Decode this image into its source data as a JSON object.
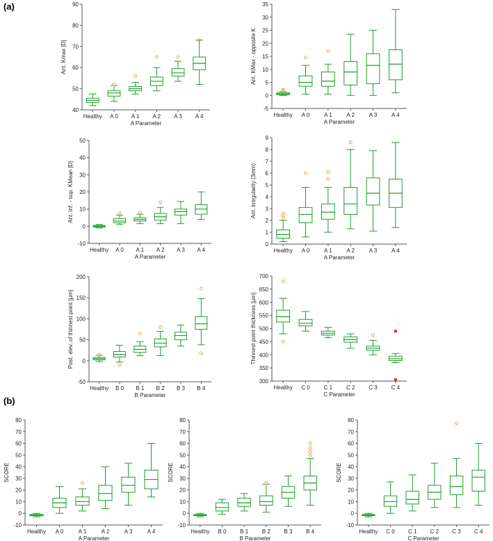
{
  "panel_labels": [
    "(a)",
    "(b)"
  ],
  "colors": {
    "box": "#1a9e2a",
    "outlier": "#f5a05a",
    "extreme": "#e8202a",
    "axis": "#555555",
    "text": "#222222"
  },
  "chart_data": [
    {
      "id": "kmax",
      "type": "box",
      "ylabel": "Ant. Kmax [D]",
      "xlabel": "A Parameter",
      "ylim": [
        40,
        90
      ],
      "yticks": [
        40,
        50,
        60,
        70,
        80,
        90
      ],
      "categories": [
        "Healthy",
        "A 0",
        "A 1",
        "A 2",
        "A 3",
        "A 4"
      ],
      "boxes": [
        {
          "wl": 42,
          "q1": 43.5,
          "med": 44.5,
          "q3": 45.5,
          "wh": 47.5,
          "outliers": []
        },
        {
          "wl": 44,
          "q1": 46.5,
          "med": 48,
          "q3": 49,
          "wh": 51.5,
          "outliers": [
            52
          ]
        },
        {
          "wl": 47.5,
          "q1": 49,
          "med": 50,
          "q3": 51,
          "wh": 53,
          "outliers": [
            56
          ]
        },
        {
          "wl": 49,
          "q1": 51.5,
          "med": 53.5,
          "q3": 55.5,
          "wh": 60,
          "outliers": [
            65
          ]
        },
        {
          "wl": 53.5,
          "q1": 56,
          "med": 57.5,
          "q3": 59.5,
          "wh": 63,
          "outliers": [
            65
          ]
        },
        {
          "wl": 52,
          "q1": 59,
          "med": 62,
          "q3": 65,
          "wh": 73,
          "outliers": [
            73
          ]
        }
      ]
    },
    {
      "id": "kmax_opp",
      "type": "box",
      "ylabel": "Ant. KMax - opposite K",
      "xlabel": "A Parameter",
      "ylim": [
        -5,
        35
      ],
      "yticks": [
        -5,
        0,
        5,
        10,
        15,
        20,
        25,
        30,
        35
      ],
      "categories": [
        "Healthy",
        "A 0",
        "A 1",
        "A 2",
        "A 3",
        "A 4"
      ],
      "boxes": [
        {
          "wl": 0,
          "q1": 0.3,
          "med": 0.6,
          "q3": 1,
          "wh": 1.5,
          "outliers": [
            1.8,
            2.0,
            2.2
          ]
        },
        {
          "wl": 0.5,
          "q1": 3.5,
          "med": 5,
          "q3": 7.5,
          "wh": 11.5,
          "outliers": [
            14.5
          ]
        },
        {
          "wl": 0.5,
          "q1": 3.5,
          "med": 5.5,
          "q3": 9,
          "wh": 12,
          "outliers": [
            17
          ]
        },
        {
          "wl": 0,
          "q1": 4,
          "med": 9,
          "q3": 13,
          "wh": 23.5,
          "outliers": []
        },
        {
          "wl": 0,
          "q1": 4.5,
          "med": 11.5,
          "q3": 16,
          "wh": 25,
          "outliers": []
        },
        {
          "wl": 1,
          "q1": 6,
          "med": 12,
          "q3": 17.5,
          "wh": 33,
          "outliers": []
        }
      ]
    },
    {
      "id": "infsup",
      "type": "box",
      "ylabel": "Ant. inf. - sup. KMean [D]",
      "xlabel": "A Parameter",
      "ylim": [
        -10,
        50
      ],
      "yticks": [
        -10,
        0,
        10,
        20,
        30,
        40,
        50
      ],
      "categories": [
        "Healthy",
        "A 0",
        "A 1",
        "A 2",
        "A 3",
        "A 4"
      ],
      "boxes": [
        {
          "wl": -1,
          "q1": -0.5,
          "med": 0,
          "q3": 0.5,
          "wh": 1,
          "outliers": []
        },
        {
          "wl": 1,
          "q1": 2,
          "med": 3,
          "q3": 4.5,
          "wh": 6.5,
          "outliers": [
            7.5
          ]
        },
        {
          "wl": 1.5,
          "q1": 3,
          "med": 4,
          "q3": 5,
          "wh": 7,
          "outliers": [
            8
          ]
        },
        {
          "wl": 1.5,
          "q1": 3.5,
          "med": 5.5,
          "q3": 7.5,
          "wh": 11,
          "outliers": [
            14
          ]
        },
        {
          "wl": 1.5,
          "q1": 6.5,
          "med": 8.5,
          "q3": 10,
          "wh": 14.5,
          "outliers": []
        },
        {
          "wl": 4,
          "q1": 7,
          "med": 10,
          "q3": 12.5,
          "wh": 20,
          "outliers": []
        }
      ]
    },
    {
      "id": "irreg",
      "type": "box",
      "ylabel": "Ant. irregularity (3mm)",
      "xlabel": "A Parameter",
      "ylim": [
        0,
        9
      ],
      "yticks": [
        0,
        1,
        2,
        3,
        4,
        5,
        6,
        7,
        8,
        9
      ],
      "categories": [
        "Healthy",
        "A 0",
        "A 1",
        "A 2",
        "A 3",
        "A 4"
      ],
      "boxes": [
        {
          "wl": 0.2,
          "q1": 0.5,
          "med": 0.8,
          "q3": 1.2,
          "wh": 2,
          "outliers": [
            2.2,
            2.4,
            2.6
          ]
        },
        {
          "wl": 0.6,
          "q1": 1.8,
          "med": 2.5,
          "q3": 3.1,
          "wh": 4.8,
          "outliers": [
            6.0
          ]
        },
        {
          "wl": 1,
          "q1": 2.1,
          "med": 2.7,
          "q3": 3.4,
          "wh": 4.8,
          "outliers": [
            5.5,
            6.1
          ]
        },
        {
          "wl": 1.3,
          "q1": 2.5,
          "med": 3.4,
          "q3": 4.8,
          "wh": 8,
          "outliers": [
            8.6
          ]
        },
        {
          "wl": 1.1,
          "q1": 3.3,
          "med": 4.3,
          "q3": 5.6,
          "wh": 7.9,
          "outliers": []
        },
        {
          "wl": 1.4,
          "q1": 3.1,
          "med": 4.3,
          "q3": 5.5,
          "wh": 8.6,
          "outliers": []
        }
      ]
    },
    {
      "id": "postelev",
      "type": "box",
      "ylabel": "Post. elev. of thinnest point [µm]",
      "xlabel": "B Parameter",
      "ylim": [
        -50,
        200
      ],
      "yticks": [
        -50,
        0,
        50,
        100,
        150,
        200
      ],
      "categories": [
        "Healthy",
        "B 0",
        "B 1",
        "B 2",
        "B 3",
        "B 4"
      ],
      "boxes": [
        {
          "wl": -2,
          "q1": 2,
          "med": 5,
          "q3": 8,
          "wh": 13,
          "outliers": [
            15
          ]
        },
        {
          "wl": -3,
          "q1": 9,
          "med": 15,
          "q3": 22,
          "wh": 37,
          "outliers": [
            -10
          ]
        },
        {
          "wl": 12,
          "q1": 20,
          "med": 27,
          "q3": 35,
          "wh": 45,
          "outliers": [
            65
          ]
        },
        {
          "wl": 12,
          "q1": 33,
          "med": 42,
          "q3": 52,
          "wh": 70,
          "outliers": [
            80
          ]
        },
        {
          "wl": 35,
          "q1": 50,
          "med": 60,
          "q3": 68,
          "wh": 85,
          "outliers": []
        },
        {
          "wl": 38,
          "q1": 75,
          "med": 88,
          "q3": 105,
          "wh": 148,
          "outliers": [
            172,
            18
          ]
        }
      ]
    },
    {
      "id": "thinnest",
      "type": "box",
      "ylabel": "Thinnest point thickness [µm]",
      "xlabel": "C Parameter",
      "ylim": [
        300,
        700
      ],
      "yticks": [
        300,
        350,
        400,
        450,
        500,
        550,
        600,
        650,
        700
      ],
      "categories": [
        "Healthy",
        "C 0",
        "C 1",
        "C 2",
        "C 3",
        "C 4"
      ],
      "boxes": [
        {
          "wl": 480,
          "q1": 525,
          "med": 545,
          "q3": 570,
          "wh": 615,
          "outliers": [
            680,
            450
          ]
        },
        {
          "wl": 490,
          "q1": 510,
          "med": 520,
          "q3": 535,
          "wh": 565,
          "outliers": []
        },
        {
          "wl": 465,
          "q1": 475,
          "med": 482,
          "q3": 490,
          "wh": 505,
          "outliers": []
        },
        {
          "wl": 425,
          "q1": 448,
          "med": 458,
          "q3": 468,
          "wh": 480,
          "outliers": []
        },
        {
          "wl": 400,
          "q1": 417,
          "med": 425,
          "q3": 433,
          "wh": 455,
          "outliers": [
            475
          ]
        },
        {
          "wl": 370,
          "q1": 378,
          "med": 385,
          "q3": 395,
          "wh": 405,
          "outliers": [],
          "extremes": [
            490,
            305
          ]
        }
      ]
    },
    {
      "id": "scoreA",
      "type": "box",
      "ylabel": "SCORE",
      "xlabel": "A Parameter",
      "ylim": [
        -10,
        80
      ],
      "yticks": [
        -10,
        0,
        10,
        20,
        30,
        40,
        50,
        60,
        70,
        80
      ],
      "categories": [
        "Healthy",
        "A 0",
        "A 1",
        "A 2",
        "A 3",
        "A 4"
      ],
      "boxes": [
        {
          "wl": -3,
          "q1": -2,
          "med": -1.5,
          "q3": -1,
          "wh": 0,
          "outliers": []
        },
        {
          "wl": 0,
          "q1": 5,
          "med": 9,
          "q3": 13,
          "wh": 23,
          "outliers": []
        },
        {
          "wl": 2,
          "q1": 7,
          "med": 10,
          "q3": 14,
          "wh": 21,
          "outliers": [
            26
          ]
        },
        {
          "wl": 4,
          "q1": 11,
          "med": 17,
          "q3": 24,
          "wh": 40,
          "outliers": []
        },
        {
          "wl": 7,
          "q1": 18,
          "med": 24,
          "q3": 31,
          "wh": 43,
          "outliers": []
        },
        {
          "wl": 14,
          "q1": 21,
          "med": 29,
          "q3": 37,
          "wh": 60,
          "outliers": []
        }
      ]
    },
    {
      "id": "scoreB",
      "type": "box",
      "ylabel": "SCORE",
      "xlabel": "B Parameter",
      "ylim": [
        -10,
        80
      ],
      "yticks": [
        -10,
        0,
        10,
        20,
        30,
        40,
        50,
        60,
        70,
        80
      ],
      "categories": [
        "Healthy",
        "B 0",
        "B 1",
        "B 2",
        "B 3",
        "B 4"
      ],
      "boxes": [
        {
          "wl": -3,
          "q1": -2,
          "med": -1.5,
          "q3": -1,
          "wh": 0,
          "outliers": []
        },
        {
          "wl": -1,
          "q1": 2,
          "med": 5,
          "q3": 9,
          "wh": 12,
          "outliers": []
        },
        {
          "wl": 2,
          "q1": 6,
          "med": 9,
          "q3": 13,
          "wh": 17,
          "outliers": []
        },
        {
          "wl": 1,
          "q1": 7,
          "med": 10,
          "q3": 15,
          "wh": 25,
          "outliers": [
            26
          ]
        },
        {
          "wl": 6,
          "q1": 13,
          "med": 18,
          "q3": 23,
          "wh": 32,
          "outliers": []
        },
        {
          "wl": 7,
          "q1": 20,
          "med": 26,
          "q3": 32,
          "wh": 47,
          "outliers": [
            50,
            53,
            56,
            60
          ]
        }
      ]
    },
    {
      "id": "scoreC",
      "type": "box",
      "ylabel": "SCORE",
      "xlabel": "C Parameter",
      "ylim": [
        -10,
        80
      ],
      "yticks": [
        -10,
        0,
        10,
        20,
        30,
        40,
        50,
        60,
        70,
        80
      ],
      "categories": [
        "Healthy",
        "C 0",
        "C 1",
        "C 2",
        "C 3",
        "C 4"
      ],
      "boxes": [
        {
          "wl": -3,
          "q1": -2,
          "med": -1.5,
          "q3": -1,
          "wh": 0,
          "outliers": []
        },
        {
          "wl": 0,
          "q1": 6,
          "med": 10,
          "q3": 15,
          "wh": 27,
          "outliers": []
        },
        {
          "wl": 2,
          "q1": 8,
          "med": 12,
          "q3": 19,
          "wh": 33,
          "outliers": []
        },
        {
          "wl": 5,
          "q1": 12,
          "med": 18,
          "q3": 24,
          "wh": 43,
          "outliers": []
        },
        {
          "wl": 5,
          "q1": 16,
          "med": 23,
          "q3": 32,
          "wh": 47,
          "outliers": [
            77
          ]
        },
        {
          "wl": 7,
          "q1": 19,
          "med": 31,
          "q3": 37,
          "wh": 60,
          "outliers": []
        }
      ]
    }
  ]
}
